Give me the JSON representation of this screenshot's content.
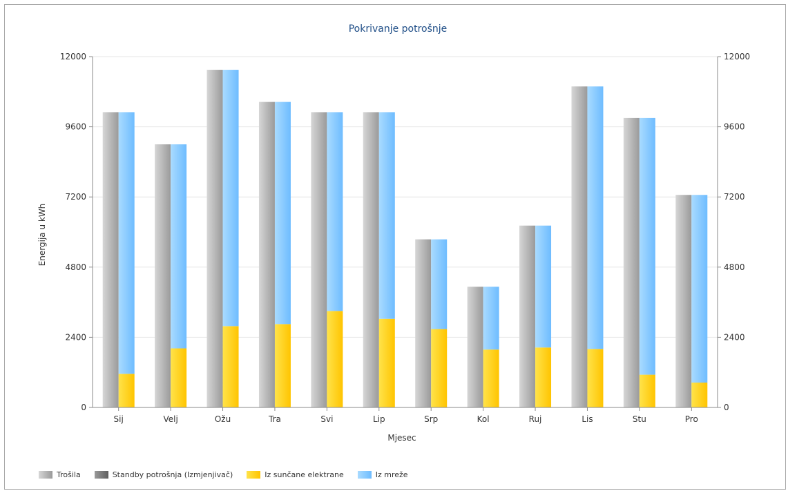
{
  "chart_data": {
    "type": "bar",
    "title": "Pokrivanje potrošnje",
    "xlabel": "Mjesec",
    "ylabel": "Energija u kWh",
    "categories": [
      "Sij",
      "Velj",
      "Ožu",
      "Tra",
      "Svi",
      "Lip",
      "Srp",
      "Kol",
      "Ruj",
      "Lis",
      "Stu",
      "Pro"
    ],
    "yticks": [
      "0",
      "2400",
      "4800",
      "7200",
      "9600",
      "12000"
    ],
    "ylim": [
      0,
      12000
    ],
    "grid": true,
    "legend_position": "bottom-left",
    "series": [
      {
        "name": "Trošila",
        "stack": "consumption",
        "color": "#b8b8b8",
        "values": [
          10100,
          9000,
          11550,
          10450,
          10100,
          10100,
          5750,
          4130,
          6220,
          10980,
          9900,
          7270
        ]
      },
      {
        "name": "Standby potrošnja (Izmjenjivač)",
        "stack": "consumption",
        "color": "#7c7c7c",
        "values": [
          0,
          0,
          0,
          0,
          0,
          0,
          0,
          0,
          0,
          0,
          0,
          0
        ]
      },
      {
        "name": "Iz sunčane elektrane",
        "stack": "coverage",
        "color": "#ffd200",
        "values": [
          1150,
          2020,
          2780,
          2850,
          3300,
          3030,
          2680,
          1980,
          2050,
          2000,
          1120,
          850
        ]
      },
      {
        "name": "Iz mreže",
        "stack": "coverage",
        "color": "#88cbff",
        "values": [
          8950,
          6980,
          8770,
          7600,
          6800,
          7070,
          3070,
          2150,
          4170,
          8980,
          8780,
          6420
        ]
      }
    ]
  }
}
